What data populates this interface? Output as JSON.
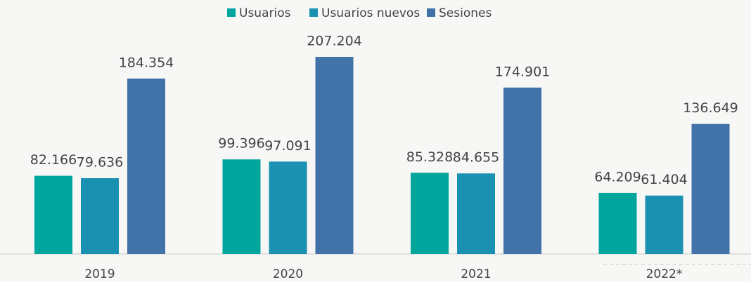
{
  "chart_data": {
    "type": "bar",
    "categories": [
      "2019",
      "2020",
      "2021",
      "2022*"
    ],
    "series": [
      {
        "name": "Usuarios",
        "color": "#00a59b",
        "values": [
          82166,
          99396,
          85328,
          64209
        ],
        "value_labels": [
          "82.166",
          "99.396",
          "85.328",
          "64.209"
        ]
      },
      {
        "name": "Usuarios nuevos",
        "color": "#1b91b1",
        "values": [
          79636,
          97091,
          84655,
          61404
        ],
        "value_labels": [
          "79.636",
          "97.091",
          "84.655",
          "61.404"
        ]
      },
      {
        "name": "Sesiones",
        "color": "#4273a8",
        "values": [
          184354,
          207204,
          174901,
          136649
        ],
        "value_labels": [
          "184.354",
          "207.204",
          "174.901",
          "136.649"
        ]
      }
    ]
  }
}
